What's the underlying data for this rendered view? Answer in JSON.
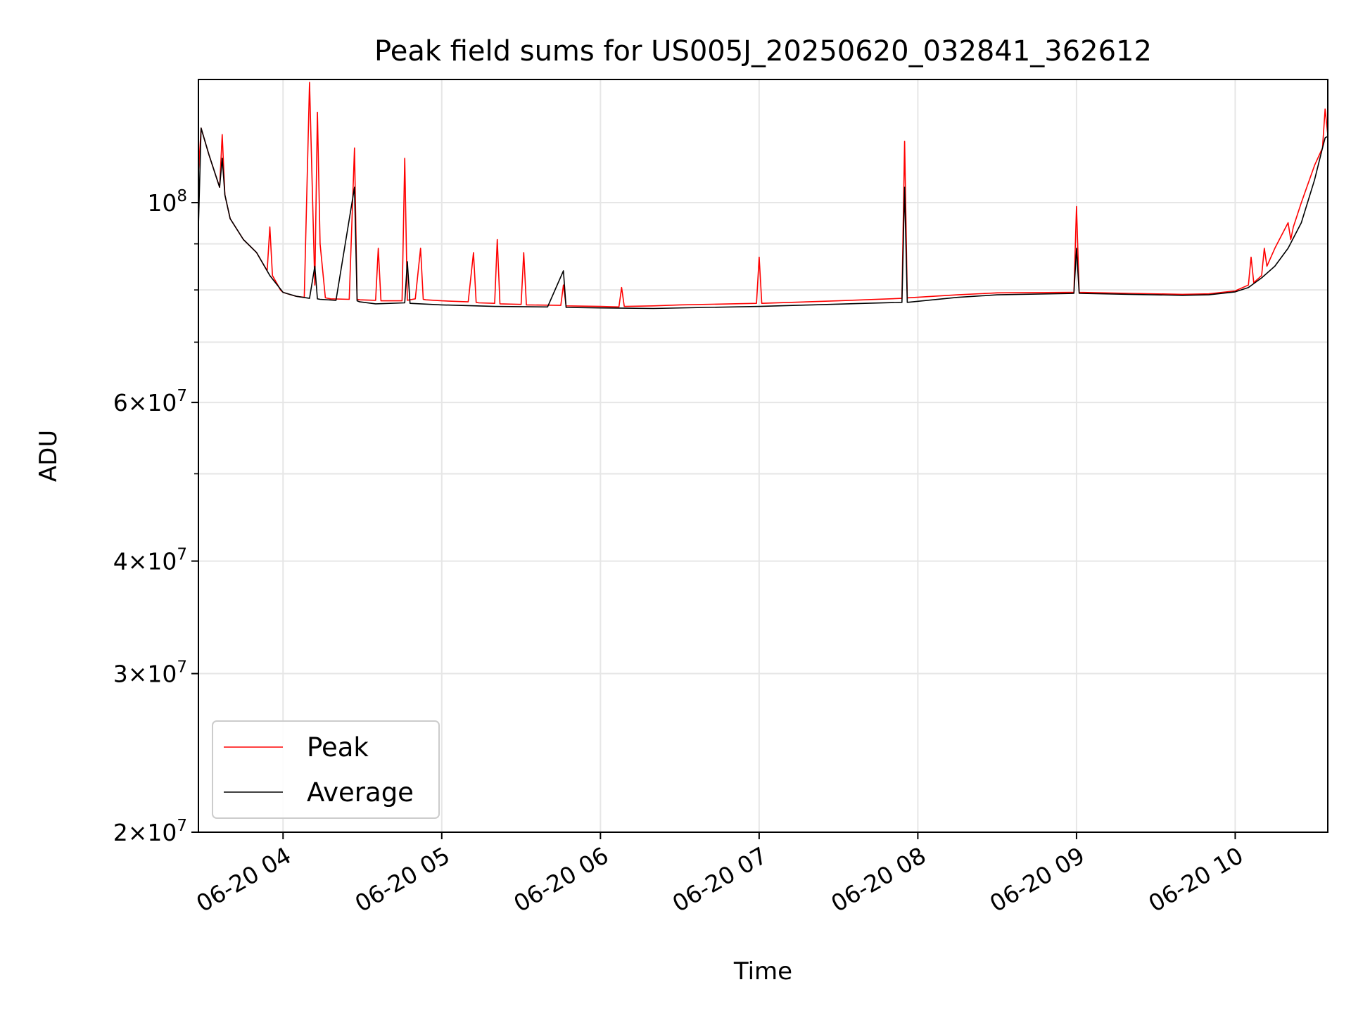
{
  "chart_data": {
    "type": "line",
    "title": "Peak field sums for US005J_20250620_032841_362612",
    "xlabel": "Time",
    "ylabel": "ADU",
    "yscale": "log",
    "ylim": [
      20000000,
      137000000
    ],
    "xlim": [
      "06-20 03:28",
      "06-20 10:35"
    ],
    "grid": true,
    "legend_position": "lower-left",
    "x_ticks": [
      "06-20 04",
      "06-20 05",
      "06-20 06",
      "06-20 07",
      "06-20 08",
      "06-20 09",
      "06-20 10"
    ],
    "x_tick_times": [
      "06-20 04:00",
      "06-20 05:00",
      "06-20 06:00",
      "06-20 07:00",
      "06-20 08:00",
      "06-20 09:00",
      "06-20 10:00"
    ],
    "y_ticks": [
      {
        "value": 20000000,
        "mantissa": "2",
        "exponent": "7"
      },
      {
        "value": 30000000,
        "mantissa": "3",
        "exponent": "7"
      },
      {
        "value": 40000000,
        "mantissa": "4",
        "exponent": "7"
      },
      {
        "value": 60000000,
        "mantissa": "6",
        "exponent": "7"
      },
      {
        "value": 100000000,
        "mantissa": "",
        "exponent": "8"
      }
    ],
    "y_minor_ticks": [
      50000000,
      70000000,
      80000000,
      90000000
    ],
    "series": [
      {
        "name": "Peak",
        "color": "#ff0000",
        "x": [
          "06-20 03:28",
          "06-20 03:29",
          "06-20 03:32",
          "06-20 03:36",
          "06-20 03:37",
          "06-20 03:38",
          "06-20 03:40",
          "06-20 03:45",
          "06-20 03:50",
          "06-20 03:54",
          "06-20 03:55",
          "06-20 03:56",
          "06-20 03:58",
          "06-20 03:59",
          "06-20 04:00",
          "06-20 04:03",
          "06-20 04:05",
          "06-20 04:08",
          "06-20 04:10",
          "06-20 04:12",
          "06-20 04:13",
          "06-20 04:14",
          "06-20 04:16",
          "06-20 04:17",
          "06-20 04:18",
          "06-20 04:25",
          "06-20 04:27",
          "06-20 04:28",
          "06-20 04:29",
          "06-20 04:35",
          "06-20 04:36",
          "06-20 04:37",
          "06-20 04:45",
          "06-20 04:46",
          "06-20 04:47",
          "06-20 04:50",
          "06-20 04:52",
          "06-20 04:53",
          "06-20 04:54",
          "06-20 05:00",
          "06-20 05:10",
          "06-20 05:12",
          "06-20 05:13",
          "06-20 05:14",
          "06-20 05:20",
          "06-20 05:21",
          "06-20 05:22",
          "06-20 05:30",
          "06-20 05:31",
          "06-20 05:32",
          "06-20 05:45",
          "06-20 05:46",
          "06-20 05:47",
          "06-20 06:00",
          "06-20 06:07",
          "06-20 06:08",
          "06-20 06:09",
          "06-20 06:20",
          "06-20 06:30",
          "06-20 06:59",
          "06-20 07:00",
          "06-20 07:01",
          "06-20 07:30",
          "06-20 07:54",
          "06-20 07:55",
          "06-20 07:56",
          "06-20 08:15",
          "06-20 08:30",
          "06-20 08:59",
          "06-20 09:00",
          "06-20 09:01",
          "06-20 09:20",
          "06-20 09:40",
          "06-20 09:50",
          "06-20 10:00",
          "06-20 10:05",
          "06-20 10:06",
          "06-20 10:07",
          "06-20 10:10",
          "06-20 10:11",
          "06-20 10:12",
          "06-20 10:15",
          "06-20 10:20",
          "06-20 10:21",
          "06-20 10:22",
          "06-20 10:25",
          "06-20 10:30",
          "06-20 10:33",
          "06-20 10:34",
          "06-20 10:35"
        ],
        "y": [
          108000000,
          121000000,
          113000000,
          104000000,
          119000000,
          102000000,
          96000000,
          91000000,
          88000000,
          84000000,
          94000000,
          83000000,
          81000000,
          80000000,
          79500000,
          79000000,
          78700000,
          78500000,
          136000000,
          81000000,
          126000000,
          90000000,
          78400000,
          78300000,
          78200000,
          78100000,
          115000000,
          78100000,
          78000000,
          77900000,
          89000000,
          77800000,
          77800000,
          112000000,
          77900000,
          78200000,
          89000000,
          78100000,
          78000000,
          77800000,
          77600000,
          88000000,
          77500000,
          77400000,
          77300000,
          91000000,
          77200000,
          77100000,
          88000000,
          77000000,
          76900000,
          81000000,
          76800000,
          76700000,
          76600000,
          80500000,
          76700000,
          76800000,
          77000000,
          77300000,
          87000000,
          77300000,
          77800000,
          78300000,
          117000000,
          78400000,
          79000000,
          79400000,
          79500000,
          99000000,
          79500000,
          79300000,
          79100000,
          79200000,
          79800000,
          81000000,
          87000000,
          81500000,
          83000000,
          89000000,
          85000000,
          89000000,
          95000000,
          91000000,
          94000000,
          100000000,
          110000000,
          115000000,
          127000000,
          119000000
        ]
      },
      {
        "name": "Average",
        "color": "#000000",
        "x": [
          "06-20 03:28",
          "06-20 03:29",
          "06-20 03:32",
          "06-20 03:36",
          "06-20 03:37",
          "06-20 03:38",
          "06-20 03:40",
          "06-20 03:45",
          "06-20 03:50",
          "06-20 03:55",
          "06-20 04:00",
          "06-20 04:05",
          "06-20 04:10",
          "06-20 04:12",
          "06-20 04:13",
          "06-20 04:14",
          "06-20 04:20",
          "06-20 04:27",
          "06-20 04:28",
          "06-20 04:29",
          "06-20 04:35",
          "06-20 04:46",
          "06-20 04:47",
          "06-20 04:48",
          "06-20 05:00",
          "06-20 05:20",
          "06-20 05:40",
          "06-20 05:46",
          "06-20 05:47",
          "06-20 06:00",
          "06-20 06:20",
          "06-20 06:40",
          "06-20 07:00",
          "06-20 07:20",
          "06-20 07:40",
          "06-20 07:54",
          "06-20 07:55",
          "06-20 07:56",
          "06-20 08:15",
          "06-20 08:30",
          "06-20 08:59",
          "06-20 09:00",
          "06-20 09:01",
          "06-20 09:20",
          "06-20 09:40",
          "06-20 09:50",
          "06-20 10:00",
          "06-20 10:05",
          "06-20 10:10",
          "06-20 10:15",
          "06-20 10:20",
          "06-20 10:25",
          "06-20 10:30",
          "06-20 10:33",
          "06-20 10:34",
          "06-20 10:35"
        ],
        "y": [
          94000000,
          121000000,
          113000000,
          104000000,
          112000000,
          102000000,
          96000000,
          91000000,
          88000000,
          83000000,
          79500000,
          78700000,
          78300000,
          85000000,
          78200000,
          78100000,
          77900000,
          104000000,
          77800000,
          77600000,
          77200000,
          77400000,
          86000000,
          77300000,
          77000000,
          76700000,
          76600000,
          84000000,
          76500000,
          76400000,
          76300000,
          76500000,
          76700000,
          77000000,
          77300000,
          77500000,
          104000000,
          77500000,
          78500000,
          79000000,
          79300000,
          89000000,
          79300000,
          79100000,
          78900000,
          79000000,
          79600000,
          80500000,
          82500000,
          85000000,
          89000000,
          95000000,
          106000000,
          115000000,
          118000000,
          118500000
        ]
      }
    ]
  }
}
